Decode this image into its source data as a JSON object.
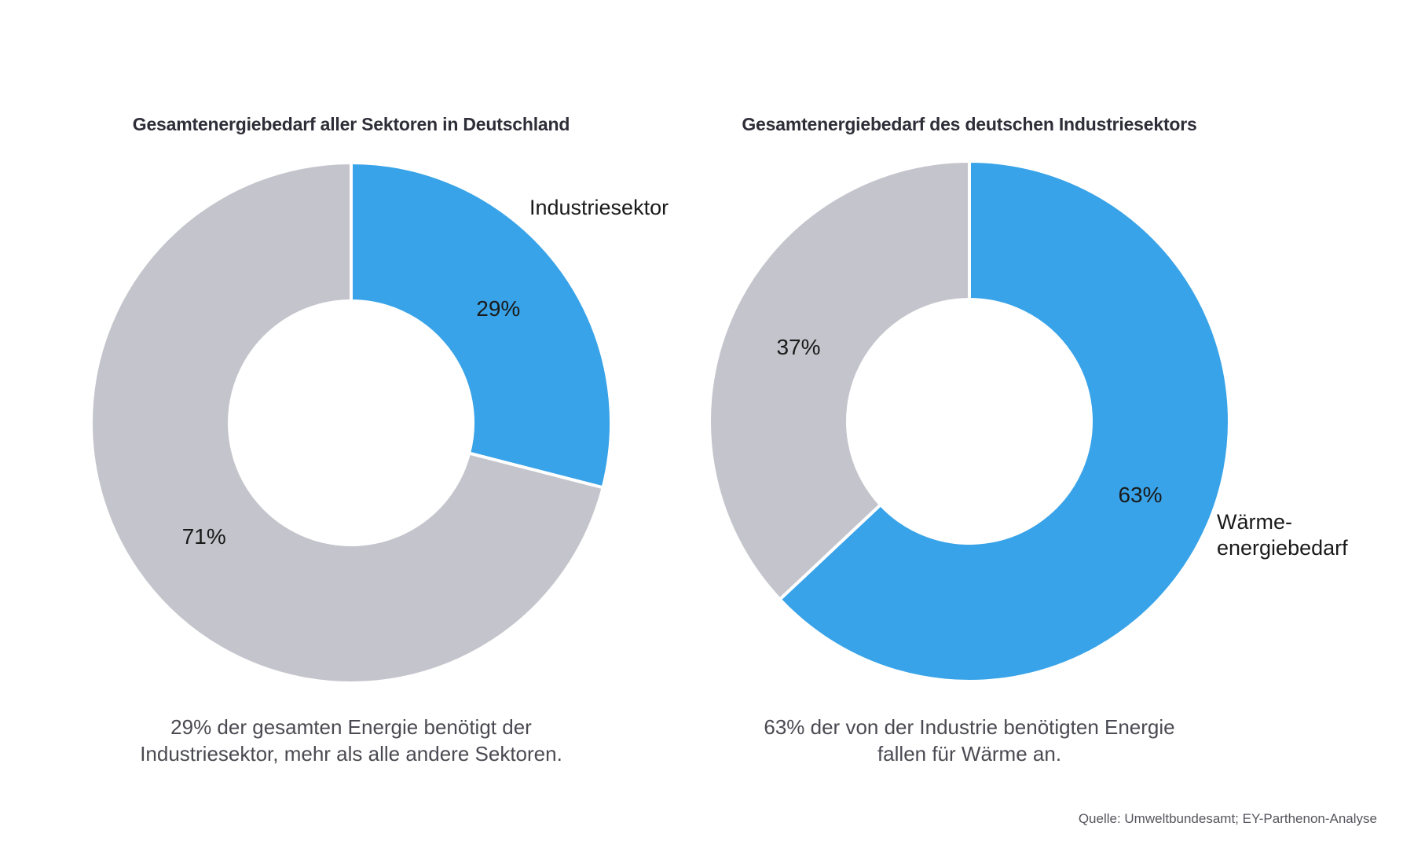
{
  "page": {
    "background": "#ffffff",
    "source_note": "Quelle: Umweltbundesamt; EY-Parthenon-Analyse"
  },
  "colors": {
    "accent_blue": "#38A3E8",
    "neutral_gray": "#C4C4CC",
    "title_text": "#2E2E38",
    "caption_text": "#4A4A52",
    "value_label_text": "#1A1A1A",
    "source_text": "#55555E",
    "segment_gap": "#FFFFFF"
  },
  "chart_data": [
    {
      "type": "pie",
      "variant": "donut",
      "title": "Gesamtenergiebedarf aller Sektoren in Deutschland",
      "start_angle_deg": 0,
      "direction": "clockwise",
      "legend": "none",
      "segments": [
        {
          "value": 29,
          "display": "29%",
          "callout": "Industriesektor",
          "color_key": "accent_blue"
        },
        {
          "value": 71,
          "display": "71%",
          "color_key": "neutral_gray"
        }
      ],
      "caption_lines": [
        "29% der gesamten Energie benötigt der",
        "Industriesektor, mehr als alle andere Sektoren."
      ]
    },
    {
      "type": "pie",
      "variant": "donut",
      "title": "Gesamtenergiebedarf des deutschen Industriesektors",
      "start_angle_deg": 0,
      "direction": "clockwise",
      "legend": "none",
      "segments": [
        {
          "value": 63,
          "display": "63%",
          "callout": "Wärme-\nenergiebedarf",
          "color_key": "accent_blue"
        },
        {
          "value": 37,
          "display": "37%",
          "color_key": "neutral_gray"
        }
      ],
      "caption_lines": [
        "63% der von der Industrie benötigten Energie",
        "fallen für Wärme an."
      ]
    }
  ]
}
